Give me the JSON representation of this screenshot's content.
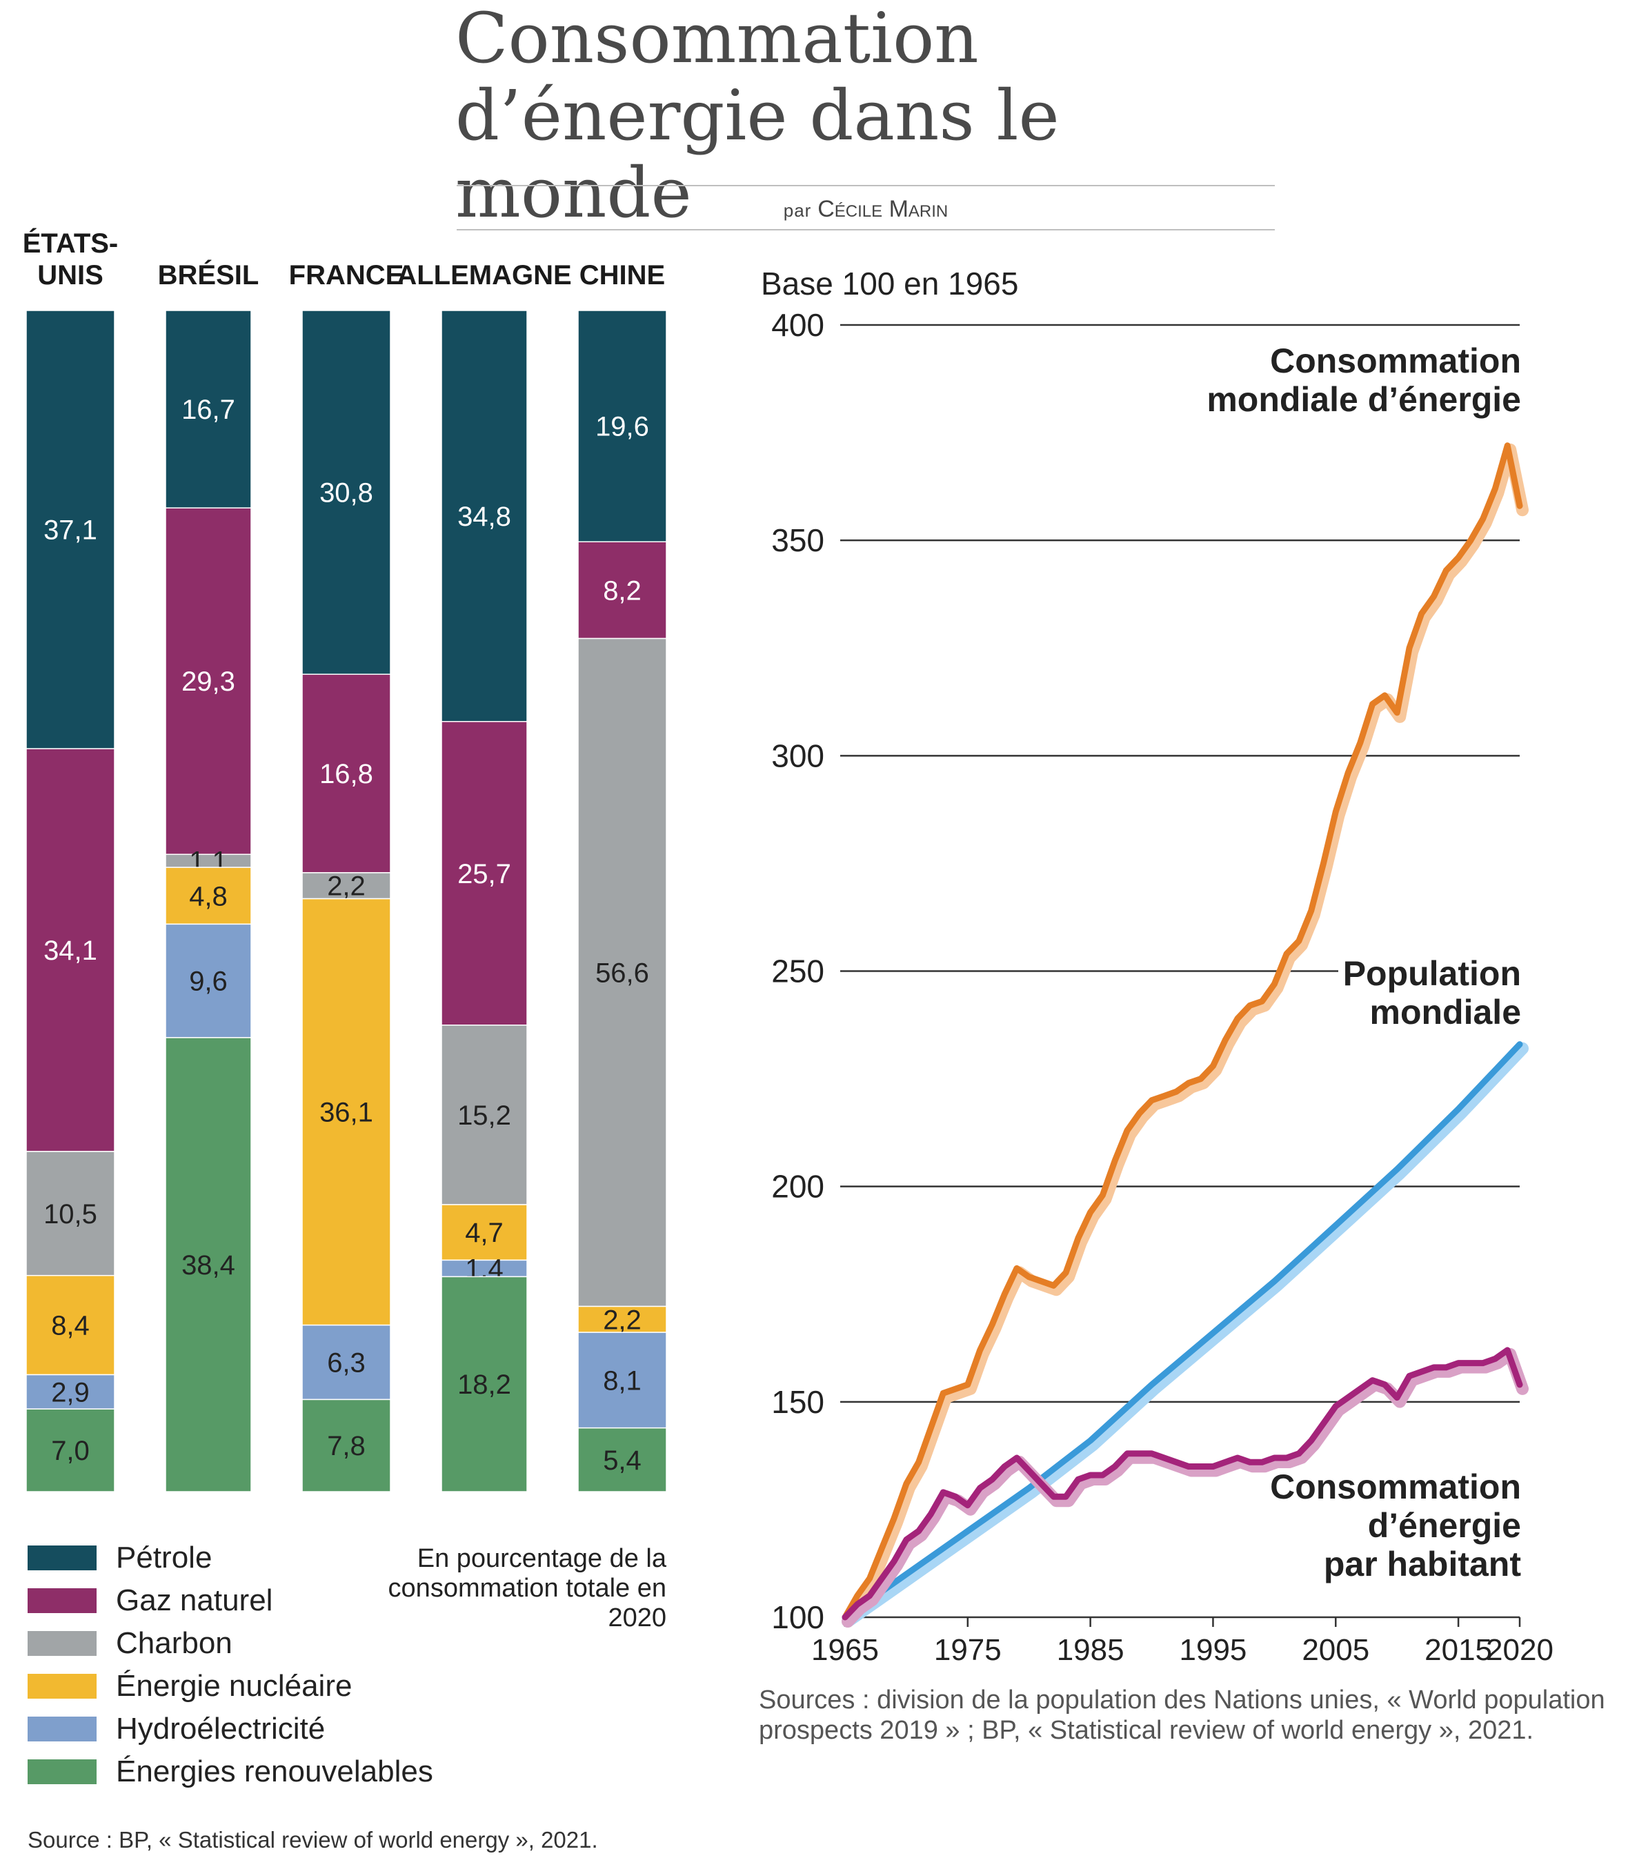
{
  "header": {
    "title_line1": "Consommation",
    "title_line2": "d’énergie dans le monde",
    "byline_prefix": "par",
    "byline_author": "Cécile Marin"
  },
  "colors": {
    "petrole": "#154d5e",
    "gaz": "#8e2e68",
    "charbon": "#a1a5a7",
    "nucleaire": "#f2b930",
    "hydro": "#7f9fcc",
    "renouvelables": "#579a66",
    "energy_line": "#e57e25",
    "population_line": "#3a9ad9",
    "per_capita_line": "#a4237a"
  },
  "chart_data": [
    {
      "type": "bar",
      "stacked": true,
      "orientation": "vertical",
      "unit_note": "En pourcentage de la consommation totale en 2020",
      "categories": [
        [
          "ÉTATS-",
          "UNIS"
        ],
        [
          "BRÉSIL"
        ],
        [
          "FRANCE"
        ],
        [
          "ALLEMAGNE"
        ],
        [
          "CHINE"
        ]
      ],
      "category_labels": [
        "ÉTATS-UNIS",
        "BRÉSIL",
        "FRANCE",
        "ALLEMAGNE",
        "CHINE"
      ],
      "series": [
        {
          "name": "Pétrole",
          "color_key": "petrole",
          "values": [
            37.1,
            16.7,
            30.8,
            34.8,
            19.6
          ],
          "labels": [
            "37,1",
            "16,7",
            "30,8",
            "34,8",
            "19,6"
          ],
          "label_color": "#ffffff"
        },
        {
          "name": "Gaz naturel",
          "color_key": "gaz",
          "values": [
            34.1,
            29.3,
            16.8,
            25.7,
            8.2
          ],
          "labels": [
            "34,1",
            "29,3",
            "16,8",
            "25,7",
            "8,2"
          ],
          "label_color": "#ffffff"
        },
        {
          "name": "Charbon",
          "color_key": "charbon",
          "values": [
            10.5,
            1.1,
            2.2,
            15.2,
            56.6
          ],
          "labels": [
            "10,5",
            "1,1",
            "2,2",
            "15,2",
            "56,6"
          ],
          "label_color": "#222222"
        },
        {
          "name": "Énergie nucléaire",
          "color_key": "nucleaire",
          "values": [
            8.4,
            4.8,
            36.1,
            4.7,
            2.2
          ],
          "labels": [
            "8,4",
            "4,8",
            "36,1",
            "4,7",
            "2,2"
          ],
          "label_color": "#222222"
        },
        {
          "name": "Hydroélectricité",
          "color_key": "hydro",
          "values": [
            2.9,
            9.6,
            6.3,
            1.4,
            8.1
          ],
          "labels": [
            "2,9",
            "9,6",
            "6,3",
            "1,4",
            "8,1"
          ],
          "label_color": "#222222"
        },
        {
          "name": "Énergies renouvelables",
          "color_key": "renouvelables",
          "values": [
            7.0,
            38.4,
            7.8,
            18.2,
            5.4
          ],
          "labels": [
            "7,0",
            "38,4",
            "7,8",
            "18,2",
            "5,4"
          ],
          "label_color": "#222222"
        }
      ],
      "source": "Source : BP, « Statistical review of world energy », 2021."
    },
    {
      "type": "line",
      "ylabel": "Base 100 en 1965",
      "ylim": [
        100,
        400
      ],
      "xlim": [
        1965,
        2020
      ],
      "yticks": [
        100,
        150,
        200,
        250,
        300,
        350,
        400
      ],
      "xticks": [
        1965,
        1975,
        1985,
        1995,
        2005,
        2015,
        2020
      ],
      "grid": true,
      "series": [
        {
          "name": "Consommation mondiale d’énergie",
          "label_lines": [
            "Consommation",
            "mondiale d’énergie"
          ],
          "color_key": "energy_line",
          "points": [
            [
              1965,
              100
            ],
            [
              1966,
              105
            ],
            [
              1967,
              109
            ],
            [
              1968,
              116
            ],
            [
              1969,
              123
            ],
            [
              1970,
              131
            ],
            [
              1971,
              136
            ],
            [
              1972,
              144
            ],
            [
              1973,
              152
            ],
            [
              1974,
              153
            ],
            [
              1975,
              154
            ],
            [
              1976,
              162
            ],
            [
              1977,
              168
            ],
            [
              1978,
              175
            ],
            [
              1979,
              181
            ],
            [
              1980,
              179
            ],
            [
              1981,
              178
            ],
            [
              1982,
              177
            ],
            [
              1983,
              180
            ],
            [
              1984,
              188
            ],
            [
              1985,
              194
            ],
            [
              1986,
              198
            ],
            [
              1987,
              206
            ],
            [
              1988,
              213
            ],
            [
              1989,
              217
            ],
            [
              1990,
              220
            ],
            [
              1991,
              221
            ],
            [
              1992,
              222
            ],
            [
              1993,
              224
            ],
            [
              1994,
              225
            ],
            [
              1995,
              228
            ],
            [
              1996,
              234
            ],
            [
              1997,
              239
            ],
            [
              1998,
              242
            ],
            [
              1999,
              243
            ],
            [
              2000,
              247
            ],
            [
              2001,
              254
            ],
            [
              2002,
              257
            ],
            [
              2003,
              264
            ],
            [
              2004,
              275
            ],
            [
              2005,
              287
            ],
            [
              2006,
              296
            ],
            [
              2007,
              303
            ],
            [
              2008,
              312
            ],
            [
              2009,
              314
            ],
            [
              2010,
              310
            ],
            [
              2011,
              325
            ],
            [
              2012,
              333
            ],
            [
              2013,
              337
            ],
            [
              2014,
              343
            ],
            [
              2015,
              346
            ],
            [
              2016,
              350
            ],
            [
              2017,
              355
            ],
            [
              2018,
              362
            ],
            [
              2019,
              372
            ],
            [
              2020,
              358
            ]
          ]
        },
        {
          "name": "Population mondiale",
          "label_lines": [
            "Population",
            "mondiale"
          ],
          "color_key": "population_line",
          "points": [
            [
              1965,
              100
            ],
            [
              1970,
              110
            ],
            [
              1975,
              120
            ],
            [
              1980,
              130
            ],
            [
              1985,
              141
            ],
            [
              1990,
              154
            ],
            [
              1995,
              166
            ],
            [
              2000,
              178
            ],
            [
              2005,
              191
            ],
            [
              2010,
              204
            ],
            [
              2015,
              218
            ],
            [
              2020,
              233
            ]
          ]
        },
        {
          "name": "Consommation d’énergie par habitant",
          "label_lines": [
            "Consommation",
            "d’énergie",
            "par habitant"
          ],
          "color_key": "per_capita_line",
          "points": [
            [
              1965,
              100
            ],
            [
              1966,
              103
            ],
            [
              1967,
              105
            ],
            [
              1968,
              109
            ],
            [
              1969,
              113
            ],
            [
              1970,
              118
            ],
            [
              1971,
              120
            ],
            [
              1972,
              124
            ],
            [
              1973,
              129
            ],
            [
              1974,
              128
            ],
            [
              1975,
              126
            ],
            [
              1976,
              130
            ],
            [
              1977,
              132
            ],
            [
              1978,
              135
            ],
            [
              1979,
              137
            ],
            [
              1980,
              134
            ],
            [
              1981,
              131
            ],
            [
              1982,
              128
            ],
            [
              1983,
              128
            ],
            [
              1984,
              132
            ],
            [
              1985,
              133
            ],
            [
              1986,
              133
            ],
            [
              1987,
              135
            ],
            [
              1988,
              138
            ],
            [
              1989,
              138
            ],
            [
              1990,
              138
            ],
            [
              1991,
              137
            ],
            [
              1992,
              136
            ],
            [
              1993,
              135
            ],
            [
              1994,
              135
            ],
            [
              1995,
              135
            ],
            [
              1996,
              136
            ],
            [
              1997,
              137
            ],
            [
              1998,
              136
            ],
            [
              1999,
              136
            ],
            [
              2000,
              137
            ],
            [
              2001,
              137
            ],
            [
              2002,
              138
            ],
            [
              2003,
              141
            ],
            [
              2004,
              145
            ],
            [
              2005,
              149
            ],
            [
              2006,
              151
            ],
            [
              2007,
              153
            ],
            [
              2008,
              155
            ],
            [
              2009,
              154
            ],
            [
              2010,
              151
            ],
            [
              2011,
              156
            ],
            [
              2012,
              157
            ],
            [
              2013,
              158
            ],
            [
              2014,
              158
            ],
            [
              2015,
              159
            ],
            [
              2016,
              159
            ],
            [
              2017,
              159
            ],
            [
              2018,
              160
            ],
            [
              2019,
              162
            ],
            [
              2020,
              154
            ]
          ]
        }
      ],
      "source": "Sources : division de la population des Nations unies, « World population prospects 2019 » ; BP, « Statistical review of world energy », 2021."
    }
  ]
}
